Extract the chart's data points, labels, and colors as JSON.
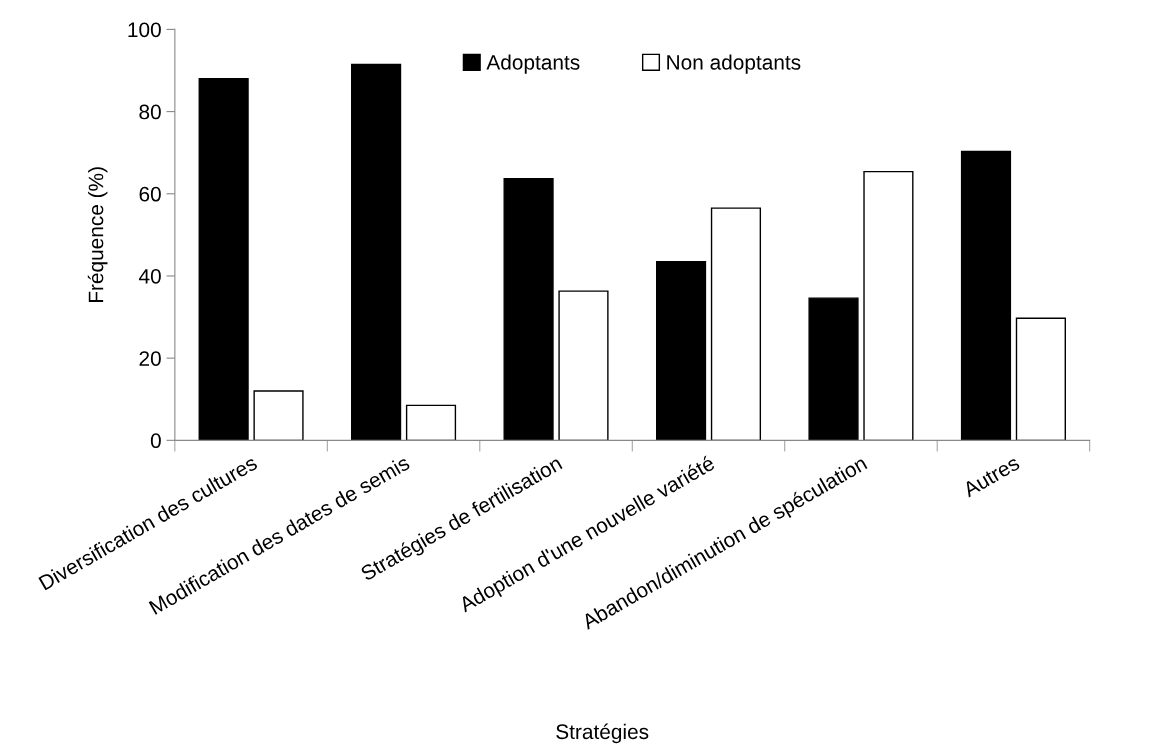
{
  "chart_data": {
    "type": "bar",
    "xlabel": "Stratégies",
    "ylabel": "Fréquence (%)",
    "categories": [
      "Diversification des cultures",
      "Modification des dates de semis",
      "Stratégies de fertilisation",
      "Adoption d'une nouvelle variété",
      "Abandon/diminution de spéculation",
      "Autres"
    ],
    "series": [
      {
        "name": "Adoptants",
        "color": "#000000",
        "values": [
          88,
          91.5,
          63.7,
          43.5,
          34.6,
          70.3
        ]
      },
      {
        "name": "Non adoptants",
        "color": "#ffffff",
        "values": [
          12,
          8.5,
          36.3,
          56.5,
          65.4,
          29.7
        ]
      }
    ],
    "ylim": [
      0,
      100
    ],
    "yticks": [
      0,
      20,
      40,
      60,
      80,
      100
    ],
    "grid": false,
    "legend": "top"
  }
}
